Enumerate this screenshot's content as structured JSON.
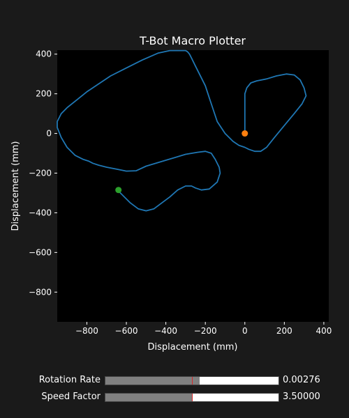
{
  "chart_data": {
    "type": "line",
    "title": "T-Bot Macro Plotter",
    "xlabel": "Displacement (mm)",
    "ylabel": "Displacement (mm)",
    "xlim": [
      -950,
      425
    ],
    "ylim": [
      -950,
      420
    ],
    "xticks": [
      -800,
      -600,
      -400,
      -200,
      0,
      200,
      400
    ],
    "yticks": [
      -800,
      -600,
      -400,
      -200,
      0,
      200,
      400
    ],
    "grid": false,
    "colors": {
      "path": "#1f77b4",
      "start": "#ff7f0e",
      "end": "#2ca02c",
      "axes_bg": "#000000",
      "figure_bg": "#1a1a1a"
    },
    "series": [
      {
        "x": [
          0,
          0,
          0,
          0,
          10,
          30,
          60,
          110,
          160,
          210,
          250,
          280,
          300,
          310,
          290,
          250,
          200,
          150,
          110,
          80,
          50,
          20,
          0,
          -30,
          -60,
          -100,
          -140,
          -160,
          -180,
          -200,
          -230,
          -250,
          -270,
          -280,
          -290,
          -300,
          -320,
          -340,
          -380,
          -440,
          -520,
          -600,
          -680,
          -740,
          -800,
          -850,
          -900,
          -930,
          -950,
          -950,
          -930,
          -900,
          -860,
          -820,
          -790,
          -770,
          -740,
          -700,
          -650,
          -600,
          -550,
          -500,
          -400,
          -300,
          -240,
          -200,
          -170,
          -150,
          -130,
          -125,
          -140,
          -180,
          -220,
          -250,
          -270,
          -300,
          -340,
          -380,
          -420,
          -460,
          -500,
          -540,
          -580,
          -610,
          -630,
          -640,
          -640
        ],
        "y": [
          0,
          40,
          120,
          200,
          230,
          255,
          265,
          275,
          290,
          300,
          295,
          270,
          230,
          190,
          150,
          100,
          40,
          -20,
          -70,
          -90,
          -90,
          -80,
          -70,
          -60,
          -40,
          0,
          60,
          120,
          180,
          240,
          300,
          340,
          380,
          400,
          412,
          418,
          418,
          418,
          418,
          405,
          370,
          330,
          290,
          250,
          210,
          170,
          130,
          100,
          60,
          30,
          -20,
          -70,
          -110,
          -130,
          -140,
          -150,
          -160,
          -170,
          -180,
          -190,
          -188,
          -165,
          -135,
          -105,
          -95,
          -90,
          -100,
          -130,
          -170,
          -200,
          -245,
          -280,
          -285,
          -275,
          -265,
          -265,
          -285,
          -320,
          -350,
          -380,
          -390,
          -380,
          -350,
          -320,
          -300,
          -290,
          -285
        ]
      }
    ],
    "markers": [
      {
        "x": 0,
        "y": 0
      },
      {
        "x": -640,
        "y": -285
      }
    ]
  },
  "sliders": [
    {
      "label": "Rotation Rate",
      "value_text": "0.00276",
      "fraction": 0.545,
      "init_fraction": 0.5
    },
    {
      "label": "Speed Factor",
      "value_text": "3.50000",
      "fraction": 0.5,
      "init_fraction": 0.5
    }
  ]
}
